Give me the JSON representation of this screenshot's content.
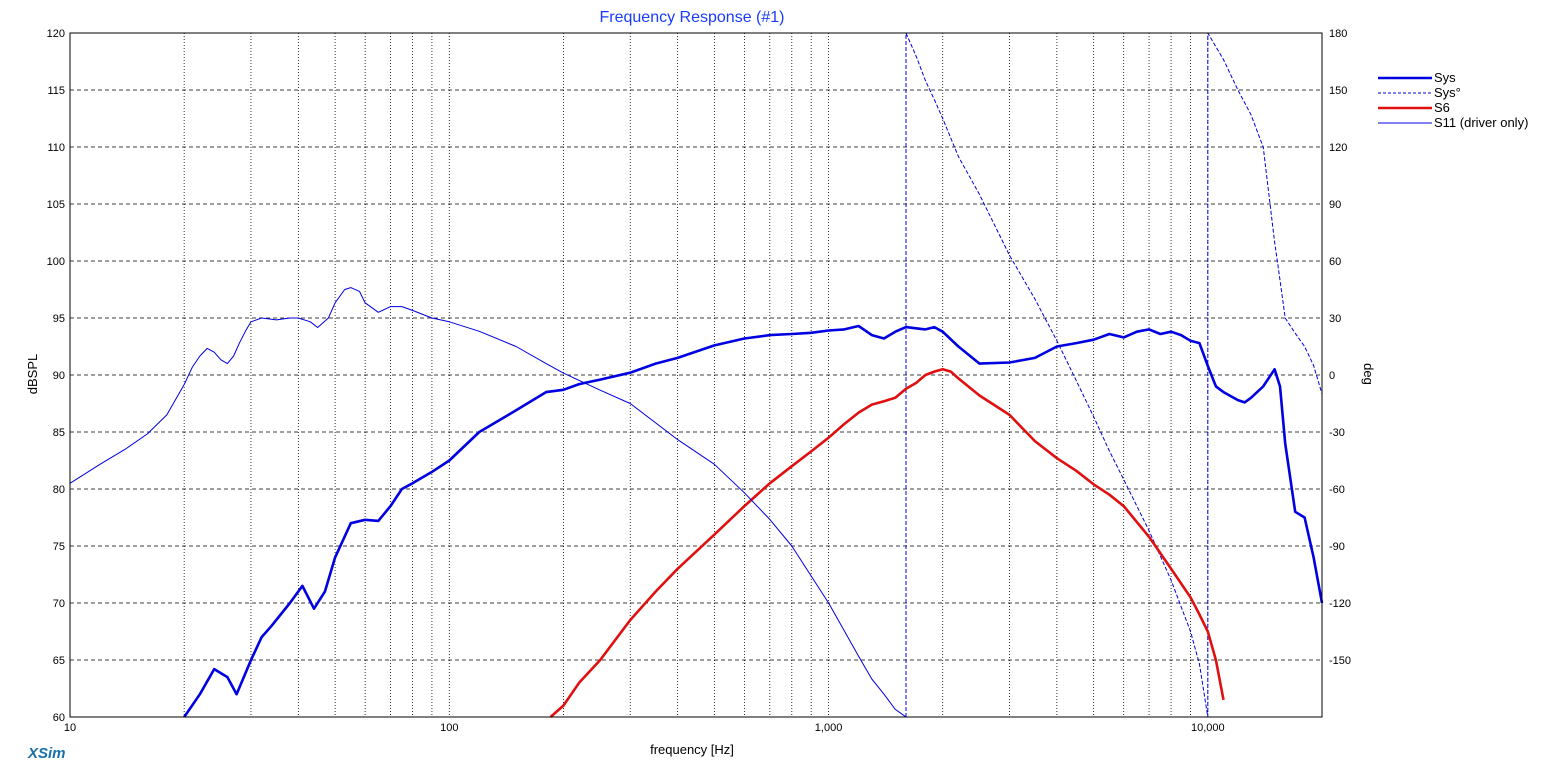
{
  "app": {
    "brand": "XSim"
  },
  "chart_data": {
    "type": "line",
    "title": "Frequency Response (#1)",
    "xlabel": "frequency [Hz]",
    "ylabel": "dBSPL",
    "y2label": "deg",
    "xscale": "log",
    "xlim": [
      10,
      20000
    ],
    "ylim": [
      60,
      120
    ],
    "y2lim": [
      -180,
      180
    ],
    "grid": true,
    "legend_position": "right",
    "xticks": [
      {
        "value": 10,
        "label": "10"
      },
      {
        "value": 100,
        "label": "100"
      },
      {
        "value": 1000,
        "label": "1,000"
      },
      {
        "value": 10000,
        "label": "10,000"
      }
    ],
    "yticks": [
      60,
      65,
      70,
      75,
      80,
      85,
      90,
      95,
      100,
      105,
      110,
      115,
      120
    ],
    "y2ticks": [
      -150,
      -120,
      -90,
      -60,
      -30,
      0,
      30,
      60,
      90,
      120,
      150,
      180
    ],
    "series": [
      {
        "name": "Sys",
        "axis": "left",
        "color": "#0000e0",
        "style": "solid",
        "width": 2.6,
        "x": [
          20,
          22,
          24,
          26,
          27.5,
          30,
          32,
          34,
          38,
          41,
          44,
          47,
          50,
          55,
          60,
          65,
          70,
          75,
          80,
          90,
          100,
          120,
          150,
          180,
          200,
          220,
          250,
          300,
          350,
          400,
          500,
          600,
          700,
          800,
          900,
          1000,
          1100,
          1200,
          1300,
          1400,
          1500,
          1600,
          1700,
          1800,
          1900,
          2000,
          2200,
          2500,
          3000,
          3500,
          4000,
          4500,
          5000,
          5500,
          6000,
          6500,
          7000,
          7500,
          8000,
          8500,
          9000,
          9500,
          10000,
          10500,
          11000,
          12000,
          12500,
          13000,
          14000,
          15000,
          15500,
          16000,
          17000,
          18000,
          19000,
          20000
        ],
        "y": [
          60,
          62,
          64.2,
          63.5,
          62,
          65,
          67,
          68,
          70,
          71.5,
          69.5,
          71,
          74,
          77,
          77.3,
          77.2,
          78.5,
          80,
          80.5,
          81.5,
          82.5,
          85,
          86.9,
          88.5,
          88.7,
          89.2,
          89.6,
          90.2,
          91,
          91.5,
          92.6,
          93.2,
          93.5,
          93.6,
          93.7,
          93.9,
          94,
          94.3,
          93.5,
          93.2,
          93.8,
          94.2,
          94.1,
          94,
          94.2,
          93.8,
          92.5,
          91,
          91.1,
          91.5,
          92.5,
          92.8,
          93.1,
          93.6,
          93.3,
          93.8,
          94,
          93.6,
          93.8,
          93.5,
          93,
          92.8,
          90.8,
          89,
          88.5,
          87.8,
          87.6,
          88,
          89,
          90.5,
          89,
          84,
          78,
          77.5,
          74,
          70
        ]
      },
      {
        "name": "Sys°",
        "axis": "right",
        "color": "#0000e0",
        "style": "dashed",
        "width": 1,
        "x": [
          1600,
          1600.5,
          1700,
          1800,
          1900,
          2000,
          2200,
          2500,
          3000,
          3500,
          4000,
          4500,
          5000,
          5500,
          6000,
          7000,
          8000,
          9000,
          9500,
          10000,
          10000.5,
          11000,
          12000,
          13000,
          14000,
          15000,
          15500,
          16000,
          17000,
          18000,
          19000,
          20000
        ],
        "y": [
          -180,
          180,
          168,
          155,
          145,
          135,
          115,
          95,
          63,
          40,
          18,
          -3,
          -22,
          -40,
          -55,
          -82,
          -108,
          -135,
          -152,
          -180,
          180,
          166,
          150,
          137,
          120,
          70,
          50,
          30,
          22,
          15,
          5,
          -10
        ]
      },
      {
        "name": "S6",
        "axis": "left",
        "color": "#e01010",
        "style": "solid",
        "width": 2.6,
        "x": [
          185,
          200,
          220,
          250,
          300,
          350,
          400,
          500,
          600,
          700,
          800,
          900,
          1000,
          1100,
          1200,
          1300,
          1400,
          1500,
          1600,
          1700,
          1800,
          1900,
          2000,
          2100,
          2200,
          2500,
          3000,
          3500,
          4000,
          4500,
          5000,
          5500,
          6000,
          7000,
          8000,
          9000,
          9500,
          10000,
          10500,
          11000
        ],
        "y": [
          60,
          61,
          63,
          65,
          68.5,
          71,
          73,
          76,
          78.5,
          80.5,
          82,
          83.3,
          84.5,
          85.7,
          86.7,
          87.4,
          87.7,
          88,
          88.8,
          89.3,
          90,
          90.3,
          90.5,
          90.3,
          89.7,
          88.2,
          86.5,
          84.2,
          82.7,
          81.6,
          80.4,
          79.5,
          78.5,
          75.8,
          73,
          70.5,
          69,
          67.5,
          65,
          61.5
        ]
      },
      {
        "name": "S11 (driver only)",
        "axis": "right",
        "color": "#0000e0",
        "style": "solid",
        "width": 1,
        "x": [
          10,
          12,
          14,
          16,
          18,
          20,
          21,
          22,
          23,
          24,
          25,
          26,
          27,
          28,
          29,
          30,
          32,
          35,
          38,
          40,
          43,
          45,
          48,
          50,
          53,
          55,
          58,
          60,
          65,
          70,
          75,
          80,
          90,
          100,
          120,
          150,
          180,
          200,
          250,
          300,
          400,
          500,
          600,
          700,
          800,
          1000,
          1200,
          1300,
          1400,
          1500,
          1550,
          1600
        ],
        "y": [
          -57,
          -47,
          -39,
          -31,
          -21,
          -5,
          4,
          10,
          14,
          12,
          8,
          6,
          10,
          17,
          23,
          28,
          30,
          29,
          30,
          30,
          28,
          25,
          30,
          38,
          45,
          46,
          44,
          38,
          33,
          36,
          36,
          34,
          30,
          28,
          23,
          15,
          6,
          1,
          -8,
          -15,
          -34,
          -47,
          -62,
          -76,
          -90,
          -120,
          -148,
          -160,
          -168,
          -176,
          -178,
          -180
        ]
      }
    ]
  }
}
